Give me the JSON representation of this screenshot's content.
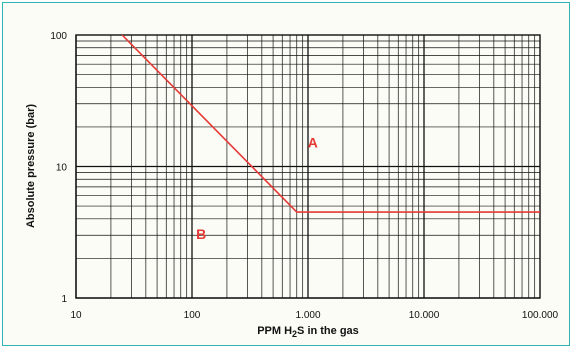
{
  "chart_data": {
    "type": "line",
    "x_scale": "log",
    "y_scale": "log",
    "xlim": [
      10,
      100000
    ],
    "ylim": [
      1,
      100
    ],
    "x_ticks": [
      10,
      100,
      1000,
      10000,
      100000
    ],
    "x_tick_labels": [
      "10",
      "100",
      "1.000",
      "10.000",
      "100.000"
    ],
    "y_ticks": [
      1,
      10,
      100
    ],
    "y_tick_labels": [
      "1",
      "10",
      "100"
    ],
    "xlabel": "PPM H₂S in the gas",
    "xlabel_parts": {
      "before": "PPM H",
      "subscript": "2",
      "after": "S in the gas"
    },
    "ylabel": "Absolute pressure (bar)",
    "grid": "log minor and major",
    "series": [
      {
        "color": "#e53935",
        "x": [
          25,
          800,
          100000
        ],
        "y": [
          100,
          4.5,
          4.5
        ]
      }
    ],
    "annotations": [
      {
        "text": "A",
        "x": 1100,
        "y": 14
      },
      {
        "text": "B",
        "x": 120,
        "y": 2.8
      }
    ]
  },
  "colors": {
    "line": "#e53935",
    "grid": "#111111",
    "frame": "#2fb7b3",
    "background": "#fbfcf5"
  }
}
